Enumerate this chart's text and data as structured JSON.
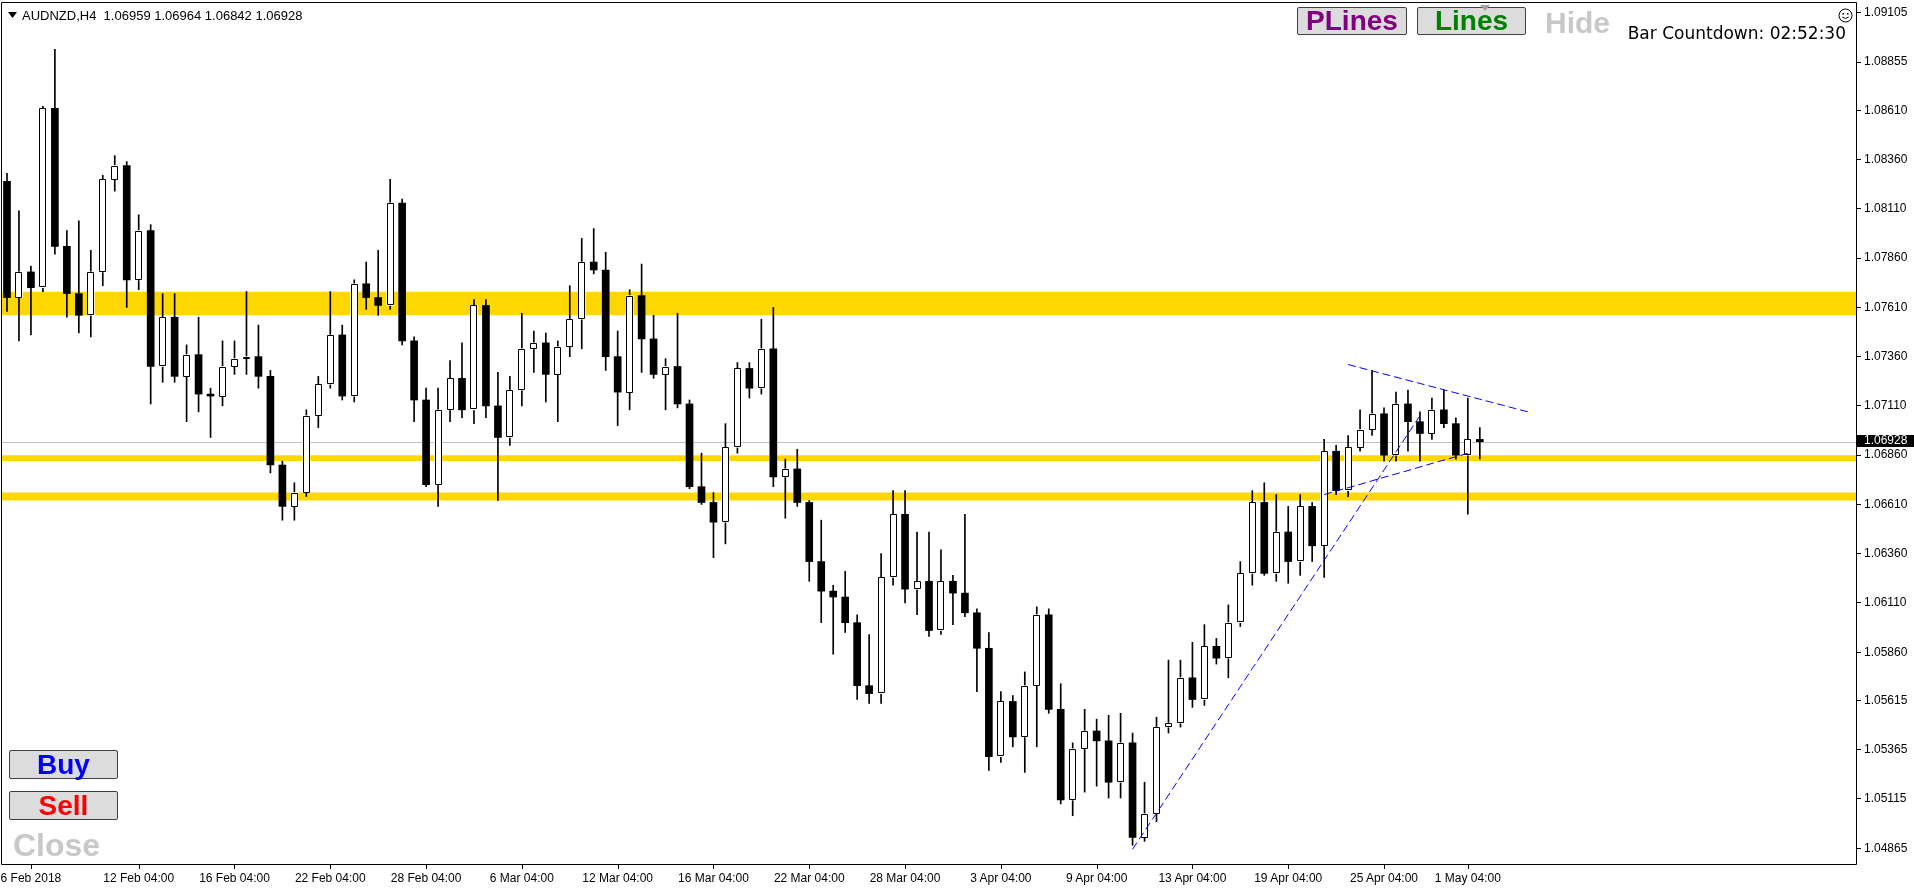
{
  "chart_data": {
    "type": "candlestick",
    "title": "AUDNZD,H4  1.06959 1.06964 1.06842 1.06928",
    "annotations": [
      "PLines",
      "Lines",
      "Hide",
      "Bar Countdown: 02:52:30",
      "Buy",
      "Sell",
      "Close"
    ],
    "color": "#000000",
    "colors": [
      "#000000",
      "#ffffff",
      "#000000",
      "#ffffff",
      "#000000",
      "#000000",
      "#000000",
      "#ffffff",
      "#ffffff",
      "#ffffff",
      "#000000",
      "#ffffff",
      "#000000",
      "#ffffff",
      "#000000",
      "#ffffff",
      "#000000",
      "#000000",
      "#ffffff",
      "#ffffff",
      "#ffffff",
      "#000000",
      "#000000",
      "#000000",
      "#ffffff",
      "#ffffff",
      "#ffffff",
      "#ffffff",
      "#000000",
      "#ffffff",
      "#000000",
      "#000000",
      "#ffffff",
      "#000000",
      "#000000",
      "#000000",
      "#ffffff",
      "#ffffff",
      "#000000",
      "#ffffff",
      "#000000",
      "#000000",
      "#ffffff",
      "#ffffff",
      "#ffffff",
      "#000000",
      "#ffffff",
      "#ffffff",
      "#ffffff",
      "#000000",
      "#000000",
      "#000000",
      "#ffffff",
      "#000000",
      "#000000",
      "#ffffff",
      "#000000",
      "#000000",
      "#000000",
      "#000000",
      "#ffffff",
      "#ffffff",
      "#000000",
      "#ffffff",
      "#000000",
      "#ffffff",
      "#000000",
      "#000000",
      "#000000",
      "#000000",
      "#000000",
      "#000000",
      "#000000",
      "#ffffff",
      "#ffffff",
      "#000000",
      "#ffffff",
      "#000000",
      "#ffffff",
      "#000000",
      "#000000",
      "#000000",
      "#000000",
      "#ffffff",
      "#000000",
      "#ffffff",
      "#ffffff",
      "#000000",
      "#000000",
      "#ffffff",
      "#ffffff",
      "#000000",
      "#000000",
      "#ffffff",
      "#000000",
      "#ffffff",
      "#ffffff",
      "#ffffff",
      "#ffffff",
      "#000000",
      "#ffffff",
      "#000000",
      "#ffffff",
      "#ffffff",
      "#ffffff",
      "#000000",
      "#ffffff",
      "#000000",
      "#ffffff",
      "#000000",
      "#ffffff",
      "#000000",
      "#ffffff",
      "#ffffff",
      "#ffffff",
      "#000000",
      "#ffffff",
      "#000000",
      "#000000",
      "#ffffff",
      "#000000",
      "#000000",
      "#ffffff",
      "#000000",
      null,
      null,
      null,
      null,
      null,
      null,
      null,
      null,
      null,
      null,
      null,
      null,
      null,
      null,
      null,
      null,
      null,
      null,
      null,
      null,
      null,
      null,
      null,
      null,
      null,
      null,
      null,
      null,
      null,
      null,
      null
    ],
    "categories": [
      null,
      null,
      "6 Feb 2018",
      null,
      null,
      null,
      null,
      null,
      null,
      null,
      null,
      "12 Feb 04:00",
      null,
      null,
      null,
      null,
      null,
      null,
      null,
      "16 Feb 04:00",
      null,
      null,
      null,
      null,
      null,
      null,
      null,
      "22 Feb 04:00",
      null,
      null,
      null,
      null,
      null,
      null,
      null,
      "28 Feb 04:00",
      null,
      null,
      null,
      null,
      null,
      null,
      null,
      "6 Mar 04:00",
      null,
      null,
      null,
      null,
      null,
      null,
      null,
      "12 Mar 04:00",
      null,
      null,
      null,
      null,
      null,
      null,
      null,
      "16 Mar 04:00",
      null,
      null,
      null,
      null,
      null,
      null,
      null,
      "22 Mar 04:00",
      null,
      null,
      null,
      null,
      null,
      null,
      null,
      "28 Mar 04:00",
      null,
      null,
      null,
      null,
      null,
      null,
      null,
      "3 Apr 04:00",
      null,
      null,
      null,
      null,
      null,
      null,
      null,
      "9 Apr 04:00",
      null,
      null,
      null,
      null,
      null,
      null,
      null,
      "13 Apr 04:00",
      null,
      null,
      null,
      null,
      null,
      null,
      null,
      "19 Apr 04:00",
      null,
      null,
      null,
      null,
      null,
      null,
      null,
      "25 Apr 04:00",
      null,
      null,
      null,
      null,
      null,
      null,
      "1 May 04:00",
      null,
      null,
      null,
      null,
      null,
      null,
      null,
      null,
      null,
      null,
      null,
      null,
      null,
      null,
      null,
      null,
      null,
      null,
      null,
      null,
      null,
      null,
      null,
      null,
      null,
      null,
      null,
      null,
      null,
      null,
      null,
      null
    ],
    "ohlc": [
      [
        1.0825,
        1.0829,
        1.0759,
        1.0766
      ],
      [
        1.0766,
        1.081,
        1.0744,
        1.0779
      ],
      [
        1.0779,
        1.0782,
        1.0747,
        1.0771
      ],
      [
        1.0771,
        1.0863,
        1.0769,
        1.0862
      ],
      [
        1.0862,
        1.0892,
        1.0788,
        1.0792
      ],
      [
        1.0792,
        1.08,
        1.0756,
        1.0768
      ],
      [
        1.0768,
        1.0805,
        1.0748,
        1.0757
      ],
      [
        1.0757,
        1.079,
        1.0746,
        1.0779
      ],
      [
        1.0779,
        1.0828,
        1.0772,
        1.0826
      ],
      [
        1.0826,
        1.0838,
        1.082,
        1.0833
      ],
      [
        1.0833,
        1.0835,
        1.0761,
        1.0775
      ],
      [
        1.0775,
        1.0808,
        1.077,
        1.08
      ],
      [
        1.08,
        1.0803,
        1.0712,
        1.0731
      ],
      [
        1.0731,
        1.0768,
        1.0723,
        1.0756
      ],
      [
        1.0756,
        1.0768,
        1.0723,
        1.0726
      ],
      [
        1.0726,
        1.0742,
        1.0703,
        1.0737
      ],
      [
        1.0737,
        1.0756,
        1.0708,
        1.0717
      ],
      [
        1.0717,
        1.072,
        1.0695,
        1.0716
      ],
      [
        1.0716,
        1.0744,
        1.0711,
        1.0731
      ],
      [
        1.0731,
        1.0744,
        1.0727,
        1.0735
      ],
      [
        1.0735,
        1.0769,
        1.0727,
        1.0736
      ],
      [
        1.0736,
        1.0752,
        1.072,
        1.0726
      ],
      [
        1.0726,
        1.0729,
        1.0677,
        1.0681
      ],
      [
        1.0681,
        1.0683,
        1.0653,
        1.066
      ],
      [
        1.066,
        1.0672,
        1.0653,
        1.0667
      ],
      [
        1.0667,
        1.0709,
        1.0665,
        1.0706
      ],
      [
        1.0706,
        1.0726,
        1.07,
        1.0722
      ],
      [
        1.0722,
        1.0769,
        1.072,
        1.0747
      ],
      [
        1.0747,
        1.0752,
        1.0714,
        1.0716
      ],
      [
        1.0716,
        1.0775,
        1.0713,
        1.0773
      ],
      [
        1.0773,
        1.0784,
        1.076,
        1.0766
      ],
      [
        1.0766,
        1.079,
        1.0757,
        1.0762
      ],
      [
        1.0762,
        1.0826,
        1.076,
        1.0814
      ],
      [
        1.0814,
        1.0816,
        1.0742,
        1.0744
      ],
      [
        1.0744,
        1.0746,
        1.0703,
        1.0714
      ],
      [
        1.0714,
        1.072,
        1.067,
        1.0671
      ],
      [
        1.0671,
        1.072,
        1.066,
        1.0709
      ],
      [
        1.0709,
        1.0734,
        1.0703,
        1.0725
      ],
      [
        1.0725,
        1.0743,
        1.0705,
        1.0709
      ],
      [
        1.0709,
        1.0765,
        1.0702,
        1.0762
      ],
      [
        1.0762,
        1.0765,
        1.0705,
        1.0711
      ],
      [
        1.0711,
        1.0728,
        1.0663,
        1.0695
      ],
      [
        1.0695,
        1.0726,
        1.0691,
        1.0719
      ],
      [
        1.0719,
        1.0758,
        1.0711,
        1.074
      ],
      [
        1.074,
        1.0749,
        1.0728,
        1.0743
      ],
      [
        1.0743,
        1.0748,
        1.0713,
        1.0727
      ],
      [
        1.0727,
        1.0744,
        1.0703,
        1.0741
      ],
      [
        1.0741,
        1.0772,
        1.0736,
        1.0755
      ],
      [
        1.0755,
        1.0796,
        1.074,
        1.0784
      ],
      [
        1.0784,
        1.0801,
        1.0778,
        1.078
      ],
      [
        1.078,
        1.0789,
        1.0729,
        1.0736
      ],
      [
        1.0736,
        1.0749,
        1.0701,
        1.0718
      ],
      [
        1.0718,
        1.077,
        1.0709,
        1.0767
      ],
      [
        1.0767,
        1.0783,
        1.0728,
        1.0745
      ],
      [
        1.0745,
        1.0757,
        1.0725,
        1.0727
      ],
      [
        1.0727,
        1.0735,
        1.0709,
        1.0731
      ],
      [
        1.0731,
        1.0758,
        1.071,
        1.0712
      ],
      [
        1.0712,
        1.0714,
        1.0669,
        1.067
      ],
      [
        1.067,
        1.0687,
        1.0661,
        1.0662
      ],
      [
        1.0662,
        1.0667,
        1.0634,
        1.0652
      ],
      [
        1.0652,
        1.0702,
        1.0641,
        1.069
      ],
      [
        1.069,
        1.0733,
        1.0687,
        1.073
      ],
      [
        1.073,
        1.0733,
        1.0715,
        1.072
      ],
      [
        1.072,
        1.0755,
        1.0717,
        1.074
      ],
      [
        1.074,
        1.0761,
        1.067,
        1.0675
      ],
      [
        1.0675,
        1.0684,
        1.0654,
        1.0679
      ],
      [
        1.0679,
        1.0689,
        1.066,
        1.0662
      ],
      [
        1.0662,
        1.0663,
        1.0622,
        1.0632
      ],
      [
        1.0632,
        1.0653,
        1.0601,
        1.0617
      ],
      [
        1.0617,
        1.062,
        1.0585,
        1.0614
      ],
      [
        1.0614,
        1.0627,
        1.0596,
        1.0601
      ],
      [
        1.0601,
        1.0605,
        1.0562,
        1.0569
      ],
      [
        1.0569,
        1.0595,
        1.056,
        1.0565
      ],
      [
        1.0565,
        1.0636,
        1.056,
        1.0624
      ],
      [
        1.0624,
        1.0668,
        1.062,
        1.0656
      ],
      [
        1.0656,
        1.0668,
        1.0611,
        1.0618
      ],
      [
        1.0618,
        1.0647,
        1.0605,
        1.0622
      ],
      [
        1.0622,
        1.0647,
        1.0594,
        1.0597
      ],
      [
        1.0597,
        1.0638,
        1.0595,
        1.0622
      ],
      [
        1.0622,
        1.0625,
        1.06,
        1.0616
      ],
      [
        1.0616,
        1.0656,
        1.0604,
        1.0606
      ],
      [
        1.0606,
        1.0608,
        1.0566,
        1.0588
      ],
      [
        1.0588,
        1.0596,
        1.0526,
        1.0533
      ],
      [
        1.0533,
        1.0566,
        1.053,
        1.0561
      ],
      [
        1.0561,
        1.0564,
        1.0538,
        1.0543
      ],
      [
        1.0543,
        1.0576,
        1.0525,
        1.0569
      ],
      [
        1.0569,
        1.0609,
        1.0538,
        1.0605
      ],
      [
        1.0605,
        1.0608,
        1.0555,
        1.0557
      ],
      [
        1.0557,
        1.057,
        1.0509,
        1.0511
      ],
      [
        1.0511,
        1.054,
        1.0503,
        1.0537
      ],
      [
        1.0537,
        1.0557,
        1.0515,
        1.0546
      ],
      [
        1.0546,
        1.0552,
        1.0518,
        1.0541
      ],
      [
        1.0541,
        1.0554,
        1.0512,
        1.052
      ],
      [
        1.052,
        1.0555,
        1.0512,
        1.054
      ],
      [
        1.054,
        1.0545,
        1.0488,
        1.0492
      ],
      [
        1.0492,
        1.052,
        1.049,
        1.0504
      ],
      [
        1.0504,
        1.0553,
        1.05,
        1.0548
      ],
      [
        1.0548,
        1.0582,
        1.0545,
        1.055
      ],
      [
        1.055,
        1.0582,
        1.0548,
        1.0573
      ],
      [
        1.0573,
        1.0591,
        1.0558,
        1.0562
      ],
      [
        1.0562,
        1.06,
        1.0559,
        1.0589
      ],
      [
        1.0589,
        1.0593,
        1.058,
        1.0583
      ],
      [
        1.0583,
        1.061,
        1.0573,
        1.0601
      ],
      [
        1.0601,
        1.0632,
        1.0599,
        1.0626
      ],
      [
        1.0626,
        1.0668,
        1.062,
        1.0662
      ],
      [
        1.0662,
        1.0672,
        1.0625,
        1.0626
      ],
      [
        1.0626,
        1.0666,
        1.0622,
        1.0647
      ],
      [
        1.0647,
        1.066,
        1.0621,
        1.0632
      ],
      [
        1.0632,
        1.0666,
        1.0625,
        1.066
      ],
      [
        1.066,
        1.0662,
        1.0632,
        1.064
      ],
      [
        1.064,
        1.0694,
        1.0624,
        1.0688
      ],
      [
        1.0688,
        1.0691,
        1.0666,
        1.0668
      ],
      [
        1.0668,
        1.0696,
        1.0665,
        1.069
      ],
      [
        1.069,
        1.0709,
        1.0688,
        1.0699
      ],
      [
        1.0699,
        1.0729,
        1.0696,
        1.0707
      ],
      [
        1.0707,
        1.071,
        1.0683,
        1.0686
      ],
      [
        1.0686,
        1.0718,
        1.0683,
        1.0712
      ],
      [
        1.0712,
        1.0719,
        1.0688,
        1.0703
      ],
      [
        1.0703,
        1.0708,
        1.0683,
        1.0697
      ],
      [
        1.0697,
        1.0715,
        1.0694,
        1.0709
      ],
      [
        1.0709,
        1.0719,
        1.07,
        1.0702
      ],
      [
        1.0702,
        1.0705,
        1.0684,
        1.0686
      ],
      [
        1.0686,
        1.0715,
        1.0656,
        1.0694
      ],
      [
        1.0694,
        1.07,
        1.0684,
        1.06928
      ],
      null,
      null,
      null,
      null,
      null,
      null,
      null,
      null,
      null,
      null,
      null,
      null,
      null,
      null,
      null,
      null,
      null,
      null,
      null,
      null,
      null,
      null,
      null,
      null,
      null,
      null,
      null,
      null,
      null,
      null,
      null
    ],
    "series": [
      {
        "type": "line",
        "color": "#0000ff",
        "line_style": "dashed",
        "values": [
          null,
          null,
          null,
          null,
          null,
          null,
          null,
          null,
          null,
          null,
          null,
          null,
          null,
          null,
          null,
          null,
          null,
          null,
          null,
          null,
          null,
          null,
          null,
          null,
          null,
          null,
          null,
          null,
          null,
          null,
          null,
          null,
          null,
          null,
          null,
          null,
          null,
          null,
          null,
          null,
          null,
          null,
          null,
          null,
          null,
          null,
          null,
          null,
          null,
          null,
          null,
          null,
          null,
          null,
          null,
          null,
          null,
          null,
          null,
          null,
          null,
          null,
          null,
          null,
          null,
          null,
          null,
          null,
          null,
          null,
          null,
          null,
          null,
          null,
          null,
          null,
          null,
          null,
          null,
          null,
          null,
          null,
          null,
          null,
          null,
          null,
          null,
          null,
          null,
          null,
          null,
          null,
          null,
          null,
          null,
          null,
          null,
          null,
          null,
          null,
          null,
          null,
          null,
          null,
          null,
          null,
          null,
          null,
          null,
          null,
          null,
          null,
          1.0732,
          1.07304,
          1.07288,
          1.07272,
          1.07256,
          1.0724,
          1.07224,
          1.07208,
          1.07192,
          1.07176,
          1.0716,
          1.07144,
          1.07128,
          1.07112,
          1.07096,
          1.0708,
          null,
          null,
          null,
          null,
          null,
          null,
          null,
          null,
          null,
          null,
          null,
          null,
          null,
          null,
          null,
          null,
          null,
          null,
          null,
          null,
          null,
          null,
          null,
          null,
          null,
          null,
          null
        ]
      },
      {
        "type": "line",
        "color": "#0000ff",
        "line_style": "dashed",
        "values": [
          null,
          null,
          null,
          null,
          null,
          null,
          null,
          null,
          null,
          null,
          null,
          null,
          null,
          null,
          null,
          null,
          null,
          null,
          null,
          null,
          null,
          null,
          null,
          null,
          null,
          null,
          null,
          null,
          null,
          null,
          null,
          null,
          null,
          null,
          null,
          null,
          null,
          null,
          null,
          null,
          null,
          null,
          null,
          null,
          null,
          null,
          null,
          null,
          null,
          null,
          null,
          null,
          null,
          null,
          null,
          null,
          null,
          null,
          null,
          null,
          null,
          null,
          null,
          null,
          null,
          null,
          null,
          null,
          null,
          null,
          null,
          null,
          null,
          null,
          null,
          null,
          null,
          null,
          null,
          null,
          null,
          null,
          null,
          null,
          null,
          null,
          null,
          null,
          null,
          null,
          null,
          null,
          null,
          null,
          null,
          null,
          null,
          null,
          null,
          null,
          null,
          null,
          null,
          null,
          null,
          null,
          null,
          null,
          null,
          null,
          1.0666,
          1.06678,
          1.06695,
          1.06712,
          1.0673,
          1.06748,
          1.06765,
          1.06782,
          1.068,
          1.06818,
          1.06835,
          1.06852,
          1.0687,
          null,
          null,
          null,
          null,
          null,
          null,
          null,
          null,
          null,
          null,
          null,
          null,
          null,
          null,
          null,
          null,
          null,
          null,
          null,
          null,
          null,
          null,
          null,
          null,
          null,
          null,
          null,
          null,
          null,
          null,
          null,
          null
        ]
      },
      {
        "type": "line",
        "color": "#0000ff",
        "line_style": "dashed",
        "values": [
          null,
          null,
          null,
          null,
          null,
          null,
          null,
          null,
          null,
          null,
          null,
          null,
          null,
          null,
          null,
          null,
          null,
          null,
          null,
          null,
          null,
          null,
          null,
          null,
          null,
          null,
          null,
          null,
          null,
          null,
          null,
          null,
          null,
          null,
          null,
          null,
          null,
          null,
          null,
          null,
          null,
          null,
          null,
          null,
          null,
          null,
          null,
          null,
          null,
          null,
          null,
          null,
          null,
          null,
          null,
          null,
          null,
          null,
          null,
          null,
          null,
          null,
          null,
          null,
          null,
          null,
          null,
          null,
          null,
          null,
          null,
          null,
          null,
          null,
          null,
          null,
          null,
          null,
          null,
          null,
          null,
          null,
          null,
          null,
          null,
          null,
          null,
          null,
          null,
          null,
          null,
          null,
          null,
          null,
          1.0486,
          1.04952,
          1.05043,
          1.05135,
          1.05227,
          1.05318,
          1.0541,
          1.05502,
          1.05593,
          1.05685,
          1.05777,
          1.05868,
          1.0596,
          1.06052,
          1.06143,
          1.06235,
          1.06327,
          1.06418,
          1.0651,
          1.06602,
          1.06693,
          1.06785,
          1.06877,
          1.06968,
          1.0706,
          null,
          null,
          null,
          null,
          null,
          null,
          null,
          null,
          null,
          null,
          null,
          null,
          null,
          null,
          null,
          null,
          null,
          null,
          null,
          null,
          null,
          null,
          null,
          null,
          null,
          null,
          null,
          null,
          null,
          null,
          null,
          null,
          null,
          null,
          null,
          null
        ]
      }
    ],
    "bands": [
      {
        "axis": "y",
        "from": 1.0757,
        "to": 1.0769,
        "color": "#ffd700"
      },
      {
        "axis": "y",
        "from": 1.0663,
        "to": 1.0667,
        "color": "#ffd700"
      },
      {
        "axis": "y",
        "from": 1.0683,
        "to": 1.0686,
        "color": "#ffd700"
      }
    ],
    "ylim": [
      1.0478,
      1.0916
    ],
    "yticks": [
      1.04865,
      1.05115,
      1.05365,
      1.05615,
      {
        "value": 1.0586,
        "label": "1.05860"
      },
      {
        "value": 1.0611,
        "label": "1.06110"
      },
      {
        "value": 1.0636,
        "label": "1.06360"
      },
      {
        "value": 1.0661,
        "label": "1.06610"
      },
      {
        "value": 1.0686,
        "label": "1.06860"
      },
      {
        "value": 1.0711,
        "label": "1.07110"
      },
      {
        "value": 1.0736,
        "label": "1.07360"
      },
      {
        "value": 1.0761,
        "label": "1.07610"
      },
      {
        "value": 1.0786,
        "label": "1.07860"
      },
      {
        "value": 1.0811,
        "label": "1.08110"
      },
      {
        "value": 1.0836,
        "label": "1.08360"
      },
      {
        "value": 1.0861,
        "label": "1.08610"
      },
      1.08855,
      1.09105
    ],
    "ref_lines": [
      {
        "axis": "y",
        "value": 1.06928,
        "label": "1.06928",
        "color": "#c0c0c0"
      }
    ]
  }
}
